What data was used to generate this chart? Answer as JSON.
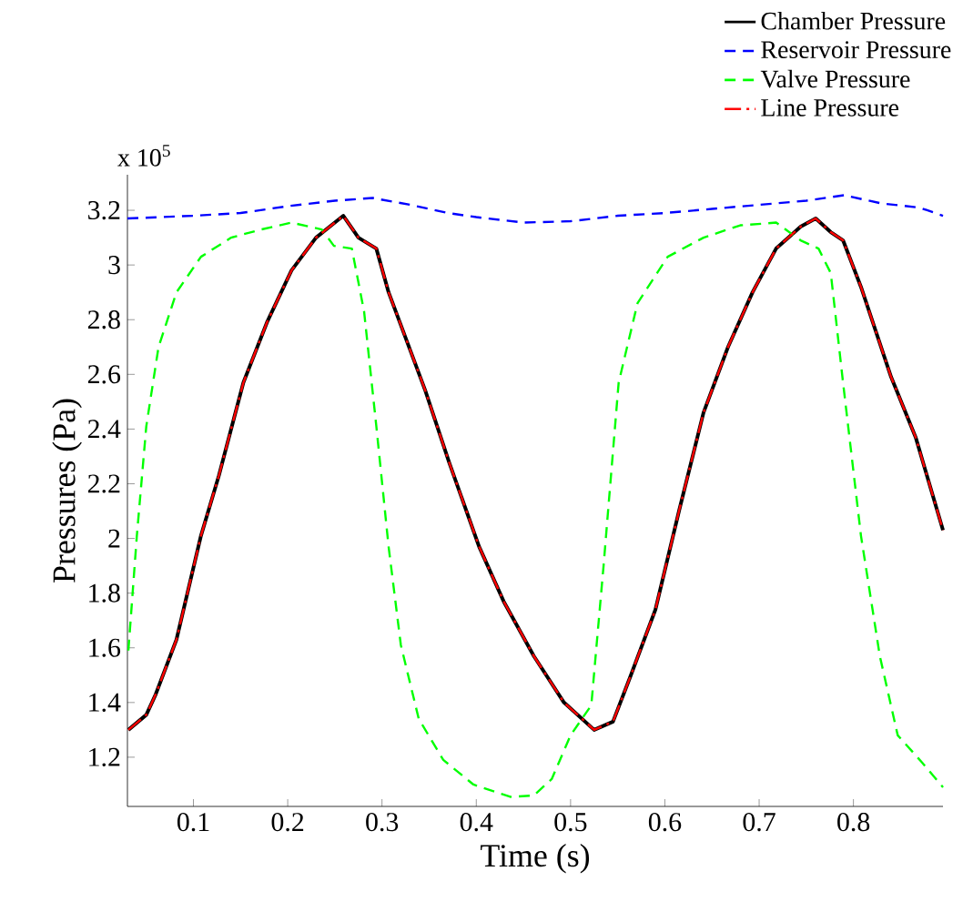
{
  "chart_data": {
    "type": "line",
    "xlabel": "Time (s)",
    "ylabel": "Pressures (Pa)",
    "annotations": [
      "x 10$^{5}$"
    ],
    "xlim": [
      0.03,
      0.895
    ],
    "ylim": [
      1.02,
      3.33
    ],
    "xticks": [
      0.1,
      0.2,
      0.3,
      0.4,
      0.5,
      0.6,
      0.7,
      0.8
    ],
    "yticks": [
      1.2,
      1.4,
      1.6,
      1.8,
      2,
      2.2,
      2.4,
      2.6,
      2.8,
      3,
      3.2
    ],
    "grid": false,
    "legend": "top right",
    "series": [
      {
        "name": "Chamber Pressure",
        "color": "#000000",
        "line_style": "solid",
        "x": [
          0.031,
          0.05,
          0.06,
          0.082,
          0.108,
          0.127,
          0.153,
          0.178,
          0.204,
          0.23,
          0.259,
          0.275,
          0.294,
          0.307,
          0.346,
          0.371,
          0.403,
          0.429,
          0.461,
          0.493,
          0.525,
          0.545,
          0.564,
          0.59,
          0.615,
          0.641,
          0.667,
          0.693,
          0.718,
          0.744,
          0.76,
          0.776,
          0.789,
          0.808,
          0.84,
          0.866,
          0.895
        ],
        "values": [
          1.3,
          1.355,
          1.43,
          1.63,
          2.01,
          2.23,
          2.57,
          2.79,
          2.98,
          3.1,
          3.18,
          3.1,
          3.06,
          2.9,
          2.54,
          2.28,
          1.97,
          1.77,
          1.57,
          1.4,
          1.3,
          1.33,
          1.5,
          1.74,
          2.1,
          2.46,
          2.7,
          2.9,
          3.06,
          3.14,
          3.17,
          3.12,
          3.09,
          2.92,
          2.59,
          2.37,
          2.03
        ]
      },
      {
        "name": "Reservoir Pressure",
        "color": "#0000ff",
        "line_style": "dashed",
        "x": [
          0.03,
          0.1,
          0.15,
          0.2,
          0.25,
          0.29,
          0.33,
          0.37,
          0.4,
          0.45,
          0.5,
          0.55,
          0.6,
          0.65,
          0.7,
          0.75,
          0.79,
          0.83,
          0.87,
          0.895
        ],
        "values": [
          3.17,
          3.18,
          3.19,
          3.215,
          3.235,
          3.245,
          3.22,
          3.19,
          3.175,
          3.155,
          3.16,
          3.18,
          3.19,
          3.205,
          3.22,
          3.235,
          3.255,
          3.225,
          3.21,
          3.18
        ]
      },
      {
        "name": "Valve Pressure",
        "color": "#00ff00",
        "line_style": "dashed",
        "x": [
          0.031,
          0.04,
          0.05,
          0.063,
          0.082,
          0.108,
          0.14,
          0.172,
          0.204,
          0.236,
          0.249,
          0.268,
          0.281,
          0.294,
          0.307,
          0.32,
          0.339,
          0.365,
          0.397,
          0.436,
          0.461,
          0.48,
          0.5,
          0.522,
          0.535,
          0.551,
          0.571,
          0.603,
          0.641,
          0.68,
          0.718,
          0.744,
          0.763,
          0.776,
          0.789,
          0.808,
          0.828,
          0.847,
          0.873,
          0.895
        ],
        "values": [
          1.59,
          2.01,
          2.41,
          2.7,
          2.9,
          3.03,
          3.1,
          3.13,
          3.155,
          3.13,
          3.07,
          3.06,
          2.83,
          2.41,
          1.97,
          1.61,
          1.34,
          1.19,
          1.1,
          1.055,
          1.06,
          1.12,
          1.28,
          1.39,
          1.9,
          2.57,
          2.86,
          3.03,
          3.1,
          3.145,
          3.155,
          3.09,
          3.06,
          2.97,
          2.57,
          2.01,
          1.57,
          1.28,
          1.18,
          1.09
        ]
      },
      {
        "name": "Line Pressure",
        "color": "#ff0000",
        "line_style": "dashdot",
        "x": [
          0.031,
          0.05,
          0.06,
          0.082,
          0.108,
          0.127,
          0.153,
          0.178,
          0.204,
          0.23,
          0.259,
          0.275,
          0.294,
          0.307,
          0.346,
          0.371,
          0.403,
          0.429,
          0.461,
          0.493,
          0.525,
          0.545,
          0.564,
          0.59,
          0.615,
          0.641,
          0.667,
          0.693,
          0.718,
          0.744,
          0.76,
          0.776,
          0.789,
          0.808,
          0.84,
          0.866,
          0.895
        ],
        "values": [
          1.3,
          1.355,
          1.43,
          1.63,
          2.01,
          2.23,
          2.57,
          2.79,
          2.98,
          3.1,
          3.18,
          3.1,
          3.06,
          2.9,
          2.54,
          2.28,
          1.97,
          1.77,
          1.57,
          1.4,
          1.3,
          1.33,
          1.5,
          1.74,
          2.1,
          2.46,
          2.7,
          2.9,
          3.06,
          3.14,
          3.17,
          3.12,
          3.09,
          2.92,
          2.59,
          2.37,
          2.03
        ]
      }
    ]
  }
}
